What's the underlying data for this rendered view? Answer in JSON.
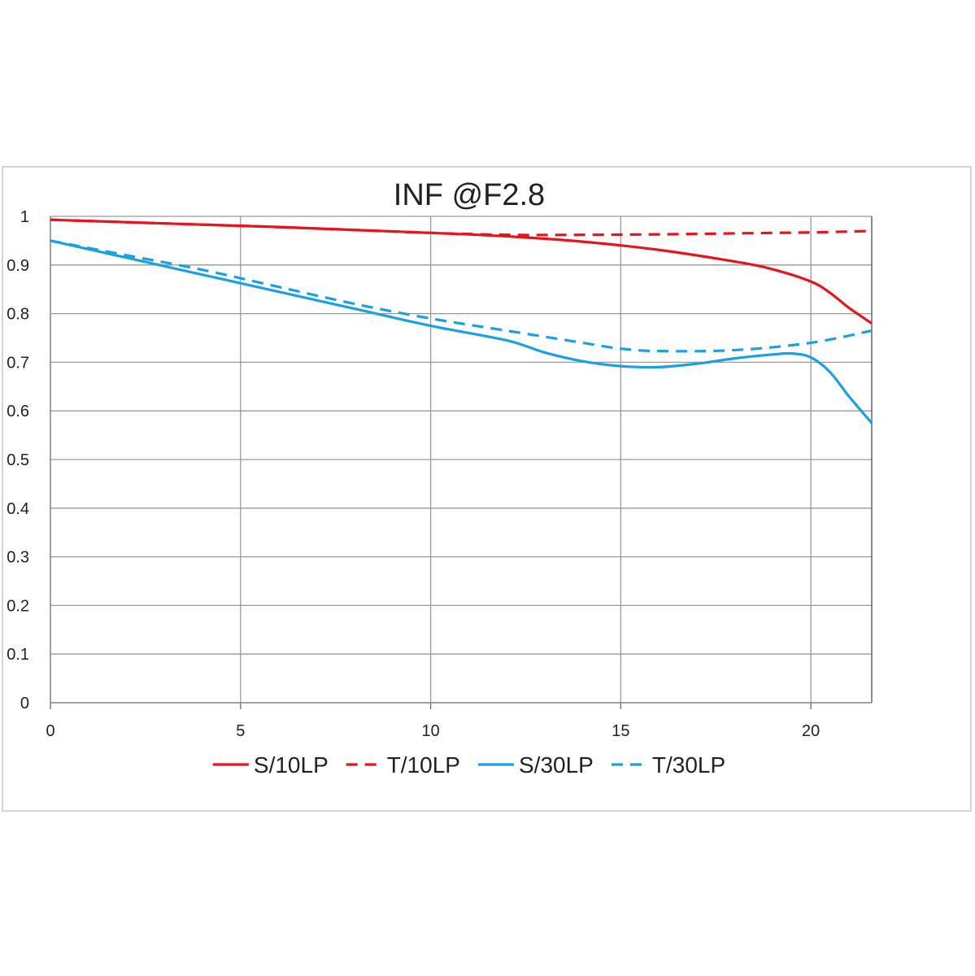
{
  "chart_data": {
    "type": "line",
    "title": "INF @F2.8",
    "xlabel": "",
    "ylabel": "",
    "xlim": [
      0,
      21.6
    ],
    "ylim": [
      0,
      1
    ],
    "x_ticks": [
      0,
      5,
      10,
      15,
      20
    ],
    "x_tick_labels": [
      "0",
      "5",
      "10",
      "15",
      "20"
    ],
    "y_ticks": [
      0,
      0.1,
      0.2,
      0.3,
      0.4,
      0.5,
      0.6,
      0.7,
      0.8,
      0.9,
      1
    ],
    "y_tick_labels": [
      "0",
      "0.1",
      "0.2",
      "0.3",
      "0.4",
      "0.5",
      "0.6",
      "0.7",
      "0.8",
      "0.9",
      "1"
    ],
    "grid": true,
    "legend_position": "bottom",
    "series": [
      {
        "name": "S/10LP",
        "color": "#e8141c",
        "dash": "solid",
        "x": [
          0,
          2,
          4,
          6,
          8,
          10,
          12,
          14,
          16,
          18,
          19,
          20,
          20.5,
          21,
          21.6
        ],
        "y": [
          0.993,
          0.988,
          0.983,
          0.978,
          0.972,
          0.966,
          0.959,
          0.948,
          0.931,
          0.907,
          0.891,
          0.866,
          0.843,
          0.812,
          0.78
        ]
      },
      {
        "name": "T/10LP",
        "color": "#e8141c",
        "dash": "dashed",
        "x": [
          0,
          2,
          4,
          6,
          8,
          10,
          12,
          14,
          16,
          18,
          20,
          21.6
        ],
        "y": [
          0.993,
          0.988,
          0.983,
          0.978,
          0.972,
          0.966,
          0.962,
          0.962,
          0.963,
          0.965,
          0.967,
          0.97
        ]
      },
      {
        "name": "S/30LP",
        "color": "#1ba1e2",
        "dash": "solid",
        "x": [
          0,
          2,
          4,
          6,
          8,
          10,
          12,
          13,
          14,
          15,
          16,
          17,
          18,
          19,
          19.5,
          20,
          20.5,
          21,
          21.6
        ],
        "y": [
          0.95,
          0.915,
          0.88,
          0.845,
          0.81,
          0.775,
          0.745,
          0.72,
          0.702,
          0.692,
          0.69,
          0.697,
          0.708,
          0.716,
          0.718,
          0.71,
          0.68,
          0.63,
          0.575
        ]
      },
      {
        "name": "T/30LP",
        "color": "#1ba1e2",
        "dash": "dashed",
        "x": [
          0,
          2,
          4,
          6,
          8,
          10,
          12,
          14,
          15,
          16,
          18,
          20,
          21.6
        ],
        "y": [
          0.95,
          0.92,
          0.89,
          0.855,
          0.82,
          0.79,
          0.765,
          0.74,
          0.728,
          0.723,
          0.725,
          0.74,
          0.765
        ]
      }
    ]
  }
}
